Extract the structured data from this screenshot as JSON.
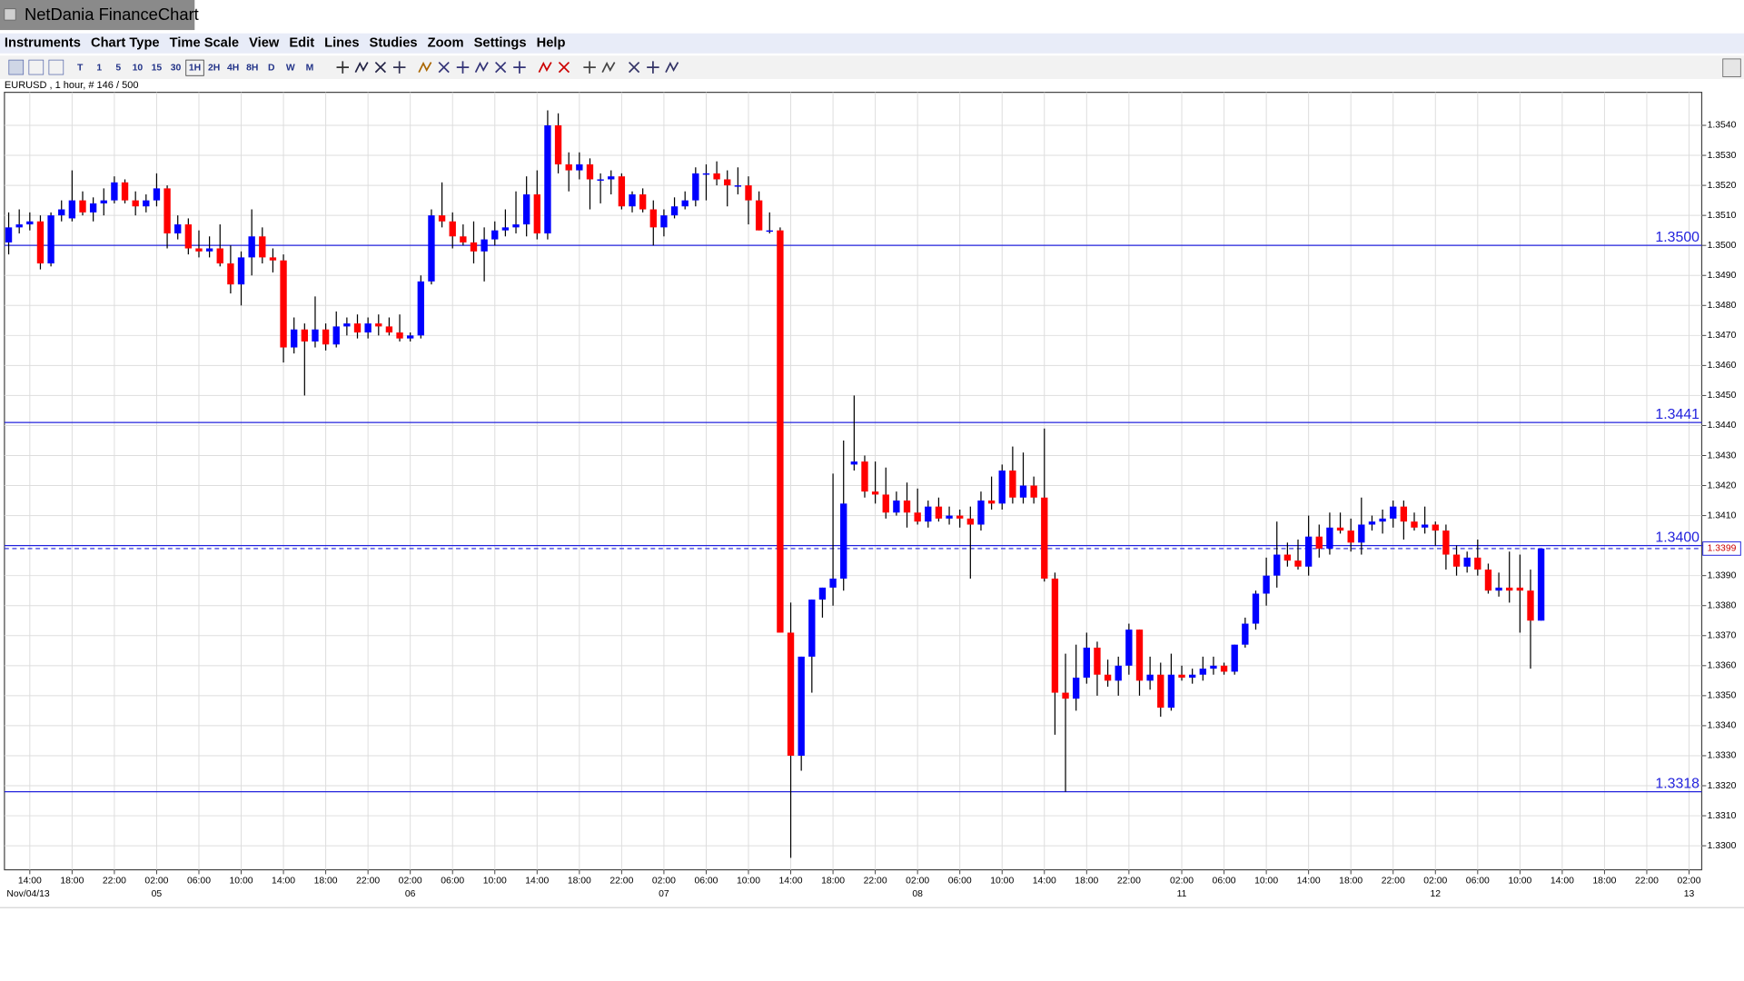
{
  "window": {
    "title": "NetDania FinanceChart"
  },
  "menu": [
    "Instruments",
    "Chart Type",
    "Time Scale",
    "View",
    "Edit",
    "Lines",
    "Studies",
    "Zoom",
    "Settings",
    "Help"
  ],
  "timescales": [
    "T",
    "1",
    "5",
    "10",
    "15",
    "30",
    "1H",
    "2H",
    "4H",
    "8H",
    "D",
    "W",
    "M"
  ],
  "chart_data": {
    "type": "candlestick",
    "info": "EURUSD , 1 hour, # 146 / 500",
    "up_color": "#0000ff",
    "down_color": "#ff0000",
    "open": [
      1.3501,
      1.3506,
      1.3507,
      1.3508,
      1.3494,
      1.351,
      1.3509,
      1.3515,
      1.3511,
      1.3514,
      1.3515,
      1.3521,
      1.3515,
      1.3513,
      1.3515,
      1.3519,
      1.3504,
      1.3507,
      1.3499,
      1.3498,
      1.3499,
      1.3494,
      1.3487,
      1.3496,
      1.3503,
      1.3496,
      1.3495,
      1.3466,
      1.3472,
      1.3468,
      1.3472,
      1.3467,
      1.3473,
      1.3474,
      1.3471,
      1.3474,
      1.3473,
      1.3471,
      1.3469,
      1.347,
      1.3488,
      1.351,
      1.3508,
      1.3503,
      1.3501,
      1.3498,
      1.3502,
      1.3505,
      1.3506,
      1.3507,
      1.3517,
      1.3504,
      1.354,
      1.3527,
      1.3525,
      1.3527,
      1.3522,
      1.3522,
      1.3523,
      1.3513,
      1.3517,
      1.3512,
      1.3506,
      1.351,
      1.3513,
      1.3515,
      1.3524,
      1.3524,
      1.3522,
      1.352,
      1.352,
      1.3515,
      1.3505,
      1.3505,
      1.3371,
      1.333,
      1.3363,
      1.3382,
      1.3386,
      1.3389,
      1.3427,
      1.3428,
      1.3418,
      1.3417,
      1.3411,
      1.3415,
      1.3411,
      1.3408,
      1.3413,
      1.3409,
      1.341,
      1.3409,
      1.3407,
      1.3415,
      1.3414,
      1.3425,
      1.3416,
      1.342,
      1.3416,
      1.3389,
      1.3351,
      1.3349,
      1.3356,
      1.3366,
      1.3357,
      1.3355,
      1.336,
      1.3372,
      1.3355,
      1.3357,
      1.3346,
      1.3357,
      1.3356,
      1.3357,
      1.3359,
      1.336,
      1.3358,
      1.3367,
      1.3374,
      1.3384,
      1.339,
      1.3397,
      1.3395,
      1.3393,
      1.3403,
      1.3399,
      1.3406,
      1.3405,
      1.3401,
      1.3407,
      1.3408,
      1.3409,
      1.3413,
      1.3408,
      1.3406,
      1.3407,
      1.3405,
      1.3397,
      1.3393,
      1.3396,
      1.3392,
      1.3385,
      1.3386,
      1.3386,
      1.3385,
      1.3375
    ],
    "high": [
      1.3511,
      1.3512,
      1.3511,
      1.351,
      1.3511,
      1.3515,
      1.3525,
      1.3518,
      1.3516,
      1.3519,
      1.3523,
      1.3522,
      1.3518,
      1.3517,
      1.3524,
      1.352,
      1.351,
      1.3509,
      1.3505,
      1.3503,
      1.3507,
      1.35,
      1.3498,
      1.3512,
      1.3506,
      1.3499,
      1.3497,
      1.3476,
      1.3474,
      1.3483,
      1.3474,
      1.3478,
      1.3476,
      1.3477,
      1.3476,
      1.3477,
      1.3476,
      1.3477,
      1.3471,
      1.349,
      1.3512,
      1.3521,
      1.3511,
      1.3507,
      1.3508,
      1.3506,
      1.3508,
      1.3512,
      1.3518,
      1.3523,
      1.3525,
      1.3545,
      1.3544,
      1.3531,
      1.3531,
      1.3529,
      1.3524,
      1.3525,
      1.3524,
      1.3518,
      1.3519,
      1.3515,
      1.3512,
      1.3516,
      1.3518,
      1.3526,
      1.3527,
      1.3528,
      1.3525,
      1.3526,
      1.3523,
      1.3518,
      1.3511,
      1.3506,
      1.3381,
      1.3363,
      1.3382,
      1.3386,
      1.3424,
      1.3435,
      1.345,
      1.343,
      1.3428,
      1.3426,
      1.3418,
      1.3421,
      1.3419,
      1.3415,
      1.3416,
      1.3413,
      1.3412,
      1.3413,
      1.3418,
      1.3423,
      1.3427,
      1.3433,
      1.3431,
      1.3423,
      1.3439,
      1.3391,
      1.3364,
      1.3367,
      1.3371,
      1.3368,
      1.3362,
      1.3363,
      1.3374,
      1.3372,
      1.3363,
      1.3361,
      1.3364,
      1.336,
      1.3359,
      1.3363,
      1.3363,
      1.3361,
      1.3367,
      1.3376,
      1.3385,
      1.3396,
      1.3408,
      1.3401,
      1.3402,
      1.341,
      1.3407,
      1.3411,
      1.3411,
      1.3409,
      1.3416,
      1.341,
      1.3412,
      1.3415,
      1.3415,
      1.3411,
      1.3413,
      1.3408,
      1.3407,
      1.34,
      1.3398,
      1.3402,
      1.3394,
      1.3391,
      1.3398,
      1.3397,
      1.3392,
      1.3399
    ],
    "low": [
      1.3497,
      1.3504,
      1.3505,
      1.3492,
      1.3493,
      1.3508,
      1.3508,
      1.351,
      1.3508,
      1.351,
      1.3514,
      1.3514,
      1.351,
      1.3511,
      1.3513,
      1.3499,
      1.3502,
      1.3497,
      1.3496,
      1.3496,
      1.3493,
      1.3484,
      1.348,
      1.349,
      1.3494,
      1.3491,
      1.3461,
      1.3464,
      1.345,
      1.3466,
      1.3465,
      1.3466,
      1.347,
      1.3469,
      1.3469,
      1.347,
      1.347,
      1.3468,
      1.3468,
      1.3469,
      1.3487,
      1.3506,
      1.3499,
      1.35,
      1.3494,
      1.3488,
      1.35,
      1.3503,
      1.3504,
      1.3503,
      1.3502,
      1.3502,
      1.3524,
      1.3518,
      1.3522,
      1.3512,
      1.3514,
      1.3517,
      1.3512,
      1.3511,
      1.3511,
      1.35,
      1.3503,
      1.3509,
      1.3512,
      1.3513,
      1.3515,
      1.352,
      1.3513,
      1.3517,
      1.3507,
      1.3505,
      1.3504,
      1.3371,
      1.3296,
      1.3325,
      1.3351,
      1.3376,
      1.338,
      1.3385,
      1.3425,
      1.3416,
      1.3414,
      1.3409,
      1.341,
      1.3406,
      1.3407,
      1.3406,
      1.3408,
      1.3407,
      1.3406,
      1.3389,
      1.3405,
      1.3412,
      1.3412,
      1.3414,
      1.3414,
      1.3414,
      1.3388,
      1.3337,
      1.3318,
      1.3345,
      1.3354,
      1.335,
      1.3353,
      1.335,
      1.3357,
      1.335,
      1.3352,
      1.3343,
      1.3345,
      1.3355,
      1.3354,
      1.3355,
      1.3357,
      1.3357,
      1.3357,
      1.3366,
      1.3372,
      1.338,
      1.3386,
      1.3393,
      1.3392,
      1.339,
      1.3396,
      1.3397,
      1.3404,
      1.3398,
      1.3397,
      1.3405,
      1.3404,
      1.3406,
      1.3402,
      1.3405,
      1.3404,
      1.34,
      1.3392,
      1.339,
      1.3391,
      1.339,
      1.3384,
      1.3383,
      1.3381,
      1.3371,
      1.3359,
      1.3375
    ],
    "close": [
      1.3506,
      1.3507,
      1.3508,
      1.3494,
      1.351,
      1.3512,
      1.3515,
      1.3511,
      1.3514,
      1.3515,
      1.3521,
      1.3515,
      1.3513,
      1.3515,
      1.3519,
      1.3504,
      1.3507,
      1.3499,
      1.3498,
      1.3499,
      1.3494,
      1.3487,
      1.3496,
      1.3503,
      1.3496,
      1.3495,
      1.3466,
      1.3472,
      1.3468,
      1.3472,
      1.3467,
      1.3473,
      1.3474,
      1.3471,
      1.3474,
      1.3473,
      1.3471,
      1.3469,
      1.347,
      1.3488,
      1.351,
      1.3508,
      1.3503,
      1.3501,
      1.3498,
      1.3502,
      1.3505,
      1.3506,
      1.3507,
      1.3517,
      1.3504,
      1.354,
      1.3527,
      1.3525,
      1.3527,
      1.3522,
      1.3522,
      1.3523,
      1.3513,
      1.3517,
      1.3512,
      1.3506,
      1.351,
      1.3513,
      1.3515,
      1.3524,
      1.3524,
      1.3522,
      1.352,
      1.352,
      1.3515,
      1.3505,
      1.3505,
      1.3371,
      1.333,
      1.3363,
      1.3382,
      1.3386,
      1.3389,
      1.3414,
      1.3428,
      1.3418,
      1.3417,
      1.3411,
      1.3415,
      1.3411,
      1.3408,
      1.3413,
      1.3409,
      1.341,
      1.3409,
      1.3407,
      1.3415,
      1.3414,
      1.3425,
      1.3416,
      1.342,
      1.3416,
      1.3389,
      1.3351,
      1.3349,
      1.3356,
      1.3366,
      1.3357,
      1.3355,
      1.336,
      1.3372,
      1.3355,
      1.3357,
      1.3346,
      1.3357,
      1.3356,
      1.3357,
      1.3359,
      1.336,
      1.3358,
      1.3367,
      1.3374,
      1.3384,
      1.339,
      1.3397,
      1.3395,
      1.3393,
      1.3403,
      1.3399,
      1.3406,
      1.3405,
      1.3401,
      1.3407,
      1.3408,
      1.3409,
      1.3413,
      1.3408,
      1.3406,
      1.3407,
      1.3405,
      1.3397,
      1.3393,
      1.3396,
      1.3392,
      1.3385,
      1.3386,
      1.3385,
      1.3385,
      1.3375,
      1.3399
    ],
    "xlim": [
      -0.4,
      160.2
    ],
    "xticks": [
      {
        "value": 2,
        "label": "14:00"
      },
      {
        "value": 6,
        "label": "18:00"
      },
      {
        "value": 10,
        "label": "22:00"
      },
      {
        "value": 14,
        "label": "02:00"
      },
      {
        "value": 18,
        "label": "06:00"
      },
      {
        "value": 22,
        "label": "10:00"
      },
      {
        "value": 26,
        "label": "14:00"
      },
      {
        "value": 30,
        "label": "18:00"
      },
      {
        "value": 34,
        "label": "22:00"
      },
      {
        "value": 38,
        "label": "02:00"
      },
      {
        "value": 42,
        "label": "06:00"
      },
      {
        "value": 46,
        "label": "10:00"
      },
      {
        "value": 50,
        "label": "14:00"
      },
      {
        "value": 54,
        "label": "18:00"
      },
      {
        "value": 58,
        "label": "22:00"
      },
      {
        "value": 62,
        "label": "02:00"
      },
      {
        "value": 66,
        "label": "06:00"
      },
      {
        "value": 70,
        "label": "10:00"
      },
      {
        "value": 74,
        "label": "14:00"
      },
      {
        "value": 78,
        "label": "18:00"
      },
      {
        "value": 82,
        "label": "22:00"
      },
      {
        "value": 86,
        "label": "02:00"
      },
      {
        "value": 90,
        "label": "06:00"
      },
      {
        "value": 94,
        "label": "10:00"
      },
      {
        "value": 98,
        "label": "14:00"
      },
      {
        "value": 102,
        "label": "18:00"
      },
      {
        "value": 106,
        "label": "22:00"
      },
      {
        "value": 111,
        "label": "02:00"
      },
      {
        "value": 115,
        "label": "06:00"
      },
      {
        "value": 119,
        "label": "10:00"
      },
      {
        "value": 123,
        "label": "14:00"
      },
      {
        "value": 127,
        "label": "18:00"
      },
      {
        "value": 131,
        "label": "22:00"
      },
      {
        "value": 135,
        "label": "02:00"
      },
      {
        "value": 139,
        "label": "06:00"
      },
      {
        "value": 143,
        "label": "10:00"
      },
      {
        "value": 147,
        "label": "14:00"
      },
      {
        "value": 151,
        "label": "18:00"
      },
      {
        "value": 155,
        "label": "22:00"
      },
      {
        "value": 159,
        "label": "02:00"
      }
    ],
    "xdates": [
      {
        "value": 2,
        "label": "Nov/04/13"
      },
      {
        "value": 14,
        "label": "05"
      },
      {
        "value": 38,
        "label": "06"
      },
      {
        "value": 62,
        "label": "07"
      },
      {
        "value": 86,
        "label": "08"
      },
      {
        "value": 111,
        "label": "11"
      },
      {
        "value": 135,
        "label": "12"
      },
      {
        "value": 159,
        "label": "13"
      }
    ],
    "ylim": [
      1.3292,
      1.3551
    ],
    "yticks": [
      {
        "value": 1.33,
        "label": "1.3300"
      },
      {
        "value": 1.331,
        "label": "1.3310"
      },
      {
        "value": 1.332,
        "label": "1.3320"
      },
      {
        "value": 1.333,
        "label": "1.3330"
      },
      {
        "value": 1.334,
        "label": "1.3340"
      },
      {
        "value": 1.335,
        "label": "1.3350"
      },
      {
        "value": 1.336,
        "label": "1.3360"
      },
      {
        "value": 1.337,
        "label": "1.3370"
      },
      {
        "value": 1.338,
        "label": "1.3380"
      },
      {
        "value": 1.339,
        "label": "1.3390"
      },
      {
        "value": 1.34,
        "label": "1.3400"
      },
      {
        "value": 1.341,
        "label": "1.3410"
      },
      {
        "value": 1.342,
        "label": "1.3420"
      },
      {
        "value": 1.343,
        "label": "1.3430"
      },
      {
        "value": 1.344,
        "label": "1.3440"
      },
      {
        "value": 1.345,
        "label": "1.3450"
      },
      {
        "value": 1.346,
        "label": "1.3460"
      },
      {
        "value": 1.347,
        "label": "1.3470"
      },
      {
        "value": 1.348,
        "label": "1.3480"
      },
      {
        "value": 1.349,
        "label": "1.3490"
      },
      {
        "value": 1.35,
        "label": "1.3500"
      },
      {
        "value": 1.351,
        "label": "1.3510"
      },
      {
        "value": 1.352,
        "label": "1.3520"
      },
      {
        "value": 1.353,
        "label": "1.3530"
      },
      {
        "value": 1.354,
        "label": "1.3540"
      }
    ],
    "grid": true,
    "levels": [
      {
        "value": 1.35,
        "label": "1.3500"
      },
      {
        "value": 1.3441,
        "label": "1.3441"
      },
      {
        "value": 1.34,
        "label": "1.3400"
      },
      {
        "value": 1.3318,
        "label": "1.3318"
      }
    ],
    "level_color": "#2222dd",
    "current": {
      "value": 1.3399,
      "label": "1.3399"
    }
  }
}
